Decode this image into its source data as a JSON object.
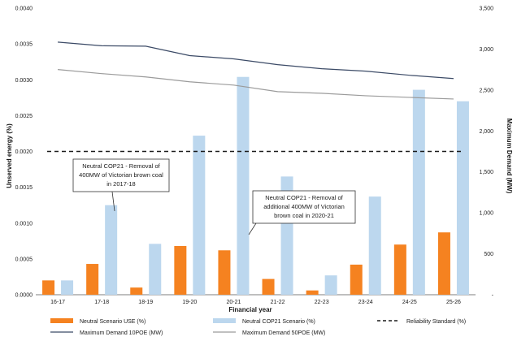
{
  "chart_data": {
    "type": "bar",
    "categories": [
      "16-17",
      "17-18",
      "18-19",
      "19-20",
      "20-21",
      "21-22",
      "22-23",
      "23-24",
      "24-25",
      "25-26"
    ],
    "xlabel": "Financial year",
    "ylabel": "Unserved energy (%)",
    "y2label": "Maximum Demand (MW)",
    "ylim": [
      0,
      0.004
    ],
    "y2lim": [
      0,
      3500
    ],
    "yticks": [
      "0.0000",
      "0.0005",
      "0.0010",
      "0.0015",
      "0.0020",
      "0.0025",
      "0.0030",
      "0.0035",
      "0.0040"
    ],
    "y2ticks": [
      "-",
      "500",
      "1,000",
      "1,500",
      "2,000",
      "2,500",
      "3,000",
      "3,500"
    ],
    "grid": false,
    "legend_position": "bottom",
    "series": [
      {
        "name": "Neutral Scenario USE (%)",
        "type": "bar",
        "axis": "left",
        "color": "#f58220",
        "values": [
          0.0002,
          0.00043,
          0.0001,
          0.00068,
          0.00062,
          0.00022,
          6e-05,
          0.00042,
          0.0007,
          0.00087
        ]
      },
      {
        "name": "Neutral COP21 Scenario (%)",
        "type": "bar",
        "axis": "left",
        "color": "#bcd7ee",
        "values": [
          0.0002,
          0.00125,
          0.00071,
          0.00222,
          0.00304,
          0.00165,
          0.00027,
          0.00137,
          0.00286,
          0.0027
        ]
      },
      {
        "name": "Reliability Standard (%)",
        "type": "hline",
        "axis": "left",
        "color": "#1a1a1a",
        "value": 0.002
      },
      {
        "name": "Maximum Demand 10POE (MW)",
        "type": "line",
        "axis": "right",
        "color": "#3b4a66",
        "values": [
          3085,
          3040,
          3035,
          2920,
          2880,
          2810,
          2760,
          2730,
          2680,
          2640
        ]
      },
      {
        "name": "Maximum Demand 50POE (MW)",
        "type": "line",
        "axis": "right",
        "color": "#9b9b9b",
        "values": [
          2750,
          2700,
          2660,
          2600,
          2560,
          2480,
          2460,
          2430,
          2410,
          2390
        ]
      }
    ],
    "annotations": [
      {
        "lines": [
          "Neutral COP21 - Removal of",
          "400MW of Victorian brown coal",
          "in 2017-18"
        ],
        "target_category": "17-18"
      },
      {
        "lines": [
          "Neutral COP21 - Removal of",
          "additional 400MW of Victorian",
          "brown coal in 2020-21"
        ],
        "target_category": "20-21"
      }
    ]
  }
}
